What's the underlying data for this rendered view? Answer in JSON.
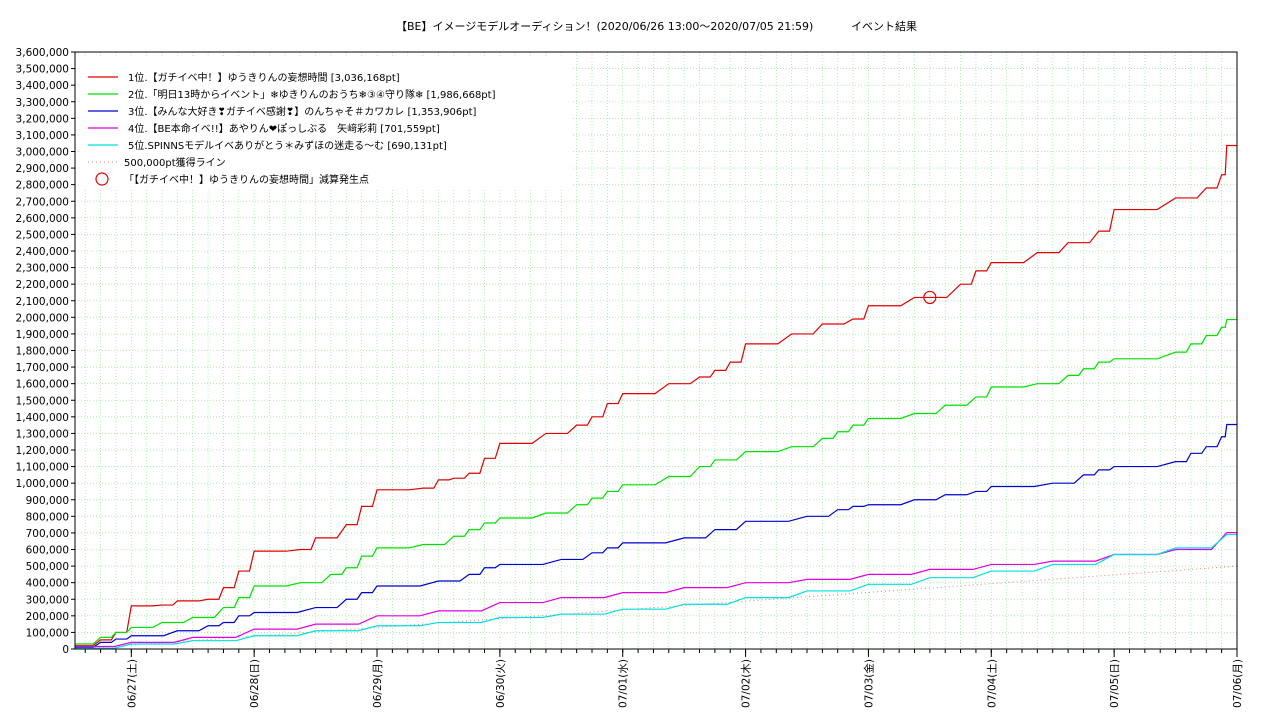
{
  "chart_data": {
    "type": "line",
    "title": "【BE】イメージモデルオーディション！(2020/06/26 13:00〜2020/07/05 21:59)",
    "subtitle": "イベント結果",
    "ylim": [
      0,
      3600000
    ],
    "y_ticks": [
      "0",
      "100,000",
      "200,000",
      "300,000",
      "400,000",
      "500,000",
      "600,000",
      "700,000",
      "800,000",
      "900,000",
      "1,000,000",
      "1,100,000",
      "1,200,000",
      "1,300,000",
      "1,400,000",
      "1,500,000",
      "1,600,000",
      "1,700,000",
      "1,800,000",
      "1,900,000",
      "2,000,000",
      "2,100,000",
      "2,200,000",
      "2,300,000",
      "2,400,000",
      "2,500,000",
      "2,600,000",
      "2,700,000",
      "2,800,000",
      "2,900,000",
      "3,000,000",
      "3,100,000",
      "3,200,000",
      "3,300,000",
      "3,400,000",
      "3,500,000",
      "3,600,000"
    ],
    "x_range": [
      "2020-06-26 13:00",
      "2020-07-06 00:00"
    ],
    "x_ticks": [
      {
        "date": "2020-06-27 00:00",
        "label": "06/27(土)"
      },
      {
        "date": "2020-06-28 00:00",
        "label": "06/28(日)"
      },
      {
        "date": "2020-06-29 00:00",
        "label": "06/29(月)"
      },
      {
        "date": "2020-06-30 00:00",
        "label": "06/30(火)"
      },
      {
        "date": "2020-07-01 00:00",
        "label": "07/01(水)"
      },
      {
        "date": "2020-07-02 00:00",
        "label": "07/02(木)"
      },
      {
        "date": "2020-07-03 00:00",
        "label": "07/03(金)"
      },
      {
        "date": "2020-07-04 00:00",
        "label": "07/04(土)"
      },
      {
        "date": "2020-07-05 00:00",
        "label": "07/05(日)"
      },
      {
        "date": "2020-07-06 00:00",
        "label": "07/06(月)"
      }
    ],
    "grid": true,
    "legend_position": "top-left",
    "series": [
      {
        "name": "1位.【ガチイベ中！】ゆうきりんの妄想時間 [3,036,168pt]",
        "color": "#e00000",
        "points": [
          [
            "2020-06-26 13:00",
            20000
          ],
          [
            "2020-06-26 18:00",
            55000
          ],
          [
            "2020-06-26 21:00",
            100000
          ],
          [
            "2020-06-27 00:00",
            260000
          ],
          [
            "2020-06-27 06:00",
            265000
          ],
          [
            "2020-06-27 09:00",
            290000
          ],
          [
            "2020-06-27 15:00",
            300000
          ],
          [
            "2020-06-27 18:00",
            370000
          ],
          [
            "2020-06-27 21:00",
            470000
          ],
          [
            "2020-06-28 00:00",
            590000
          ],
          [
            "2020-06-28 09:00",
            600000
          ],
          [
            "2020-06-28 12:00",
            670000
          ],
          [
            "2020-06-28 18:00",
            750000
          ],
          [
            "2020-06-28 21:00",
            860000
          ],
          [
            "2020-06-29 00:00",
            960000
          ],
          [
            "2020-06-29 09:00",
            970000
          ],
          [
            "2020-06-29 12:00",
            1020000
          ],
          [
            "2020-06-29 15:00",
            1030000
          ],
          [
            "2020-06-29 18:00",
            1060000
          ],
          [
            "2020-06-29 21:00",
            1150000
          ],
          [
            "2020-06-30 00:00",
            1240000
          ],
          [
            "2020-06-30 09:00",
            1300000
          ],
          [
            "2020-06-30 15:00",
            1350000
          ],
          [
            "2020-06-30 18:00",
            1400000
          ],
          [
            "2020-06-30 21:00",
            1480000
          ],
          [
            "2020-07-01 00:00",
            1540000
          ],
          [
            "2020-07-01 09:00",
            1600000
          ],
          [
            "2020-07-01 15:00",
            1640000
          ],
          [
            "2020-07-01 18:00",
            1680000
          ],
          [
            "2020-07-01 21:00",
            1730000
          ],
          [
            "2020-07-02 00:00",
            1840000
          ],
          [
            "2020-07-02 09:00",
            1900000
          ],
          [
            "2020-07-02 15:00",
            1960000
          ],
          [
            "2020-07-02 21:00",
            1990000
          ],
          [
            "2020-07-03 00:00",
            2070000
          ],
          [
            "2020-07-03 09:00",
            2120000
          ],
          [
            "2020-07-03 18:00",
            2200000
          ],
          [
            "2020-07-03 21:00",
            2280000
          ],
          [
            "2020-07-04 00:00",
            2330000
          ],
          [
            "2020-07-04 09:00",
            2390000
          ],
          [
            "2020-07-04 15:00",
            2450000
          ],
          [
            "2020-07-04 21:00",
            2520000
          ],
          [
            "2020-07-05 00:00",
            2650000
          ],
          [
            "2020-07-05 12:00",
            2720000
          ],
          [
            "2020-07-05 18:00",
            2780000
          ],
          [
            "2020-07-05 21:00",
            2860000
          ],
          [
            "2020-07-05 22:00",
            3036168
          ],
          [
            "2020-07-06 00:00",
            3036168
          ]
        ]
      },
      {
        "name": "2位.「明日13時からイベント」❄ゆきりんのおうち❄③④守り隊❄ [1,986,668pt]",
        "color": "#00e000",
        "points": [
          [
            "2020-06-26 13:00",
            30000
          ],
          [
            "2020-06-26 18:00",
            70000
          ],
          [
            "2020-06-26 21:00",
            100000
          ],
          [
            "2020-06-27 00:00",
            130000
          ],
          [
            "2020-06-27 06:00",
            160000
          ],
          [
            "2020-06-27 12:00",
            190000
          ],
          [
            "2020-06-27 18:00",
            250000
          ],
          [
            "2020-06-27 21:00",
            310000
          ],
          [
            "2020-06-28 00:00",
            380000
          ],
          [
            "2020-06-28 09:00",
            400000
          ],
          [
            "2020-06-28 15:00",
            450000
          ],
          [
            "2020-06-28 18:00",
            490000
          ],
          [
            "2020-06-28 21:00",
            560000
          ],
          [
            "2020-06-29 00:00",
            610000
          ],
          [
            "2020-06-29 09:00",
            630000
          ],
          [
            "2020-06-29 15:00",
            680000
          ],
          [
            "2020-06-29 18:00",
            720000
          ],
          [
            "2020-06-29 21:00",
            760000
          ],
          [
            "2020-06-30 00:00",
            790000
          ],
          [
            "2020-06-30 09:00",
            820000
          ],
          [
            "2020-06-30 15:00",
            870000
          ],
          [
            "2020-06-30 18:00",
            910000
          ],
          [
            "2020-06-30 21:00",
            950000
          ],
          [
            "2020-07-01 00:00",
            990000
          ],
          [
            "2020-07-01 09:00",
            1040000
          ],
          [
            "2020-07-01 15:00",
            1100000
          ],
          [
            "2020-07-01 18:00",
            1140000
          ],
          [
            "2020-07-02 00:00",
            1190000
          ],
          [
            "2020-07-02 09:00",
            1220000
          ],
          [
            "2020-07-02 15:00",
            1270000
          ],
          [
            "2020-07-02 18:00",
            1310000
          ],
          [
            "2020-07-02 21:00",
            1350000
          ],
          [
            "2020-07-03 00:00",
            1390000
          ],
          [
            "2020-07-03 09:00",
            1420000
          ],
          [
            "2020-07-03 15:00",
            1470000
          ],
          [
            "2020-07-03 21:00",
            1520000
          ],
          [
            "2020-07-04 00:00",
            1580000
          ],
          [
            "2020-07-04 09:00",
            1600000
          ],
          [
            "2020-07-04 15:00",
            1650000
          ],
          [
            "2020-07-04 18:00",
            1690000
          ],
          [
            "2020-07-04 21:00",
            1730000
          ],
          [
            "2020-07-05 00:00",
            1750000
          ],
          [
            "2020-07-05 12:00",
            1790000
          ],
          [
            "2020-07-05 15:00",
            1840000
          ],
          [
            "2020-07-05 18:00",
            1890000
          ],
          [
            "2020-07-05 21:00",
            1940000
          ],
          [
            "2020-07-05 22:00",
            1986668
          ],
          [
            "2020-07-06 00:00",
            1986668
          ]
        ]
      },
      {
        "name": "3位.【みんな大好き❣ガチイベ感謝❣】のんちゃそ＃カワカレ [1,353,906pt]",
        "color": "#0000d0",
        "points": [
          [
            "2020-06-26 13:00",
            10000
          ],
          [
            "2020-06-26 18:00",
            40000
          ],
          [
            "2020-06-26 21:00",
            60000
          ],
          [
            "2020-06-27 00:00",
            80000
          ],
          [
            "2020-06-27 09:00",
            110000
          ],
          [
            "2020-06-27 15:00",
            140000
          ],
          [
            "2020-06-27 18:00",
            160000
          ],
          [
            "2020-06-27 21:00",
            200000
          ],
          [
            "2020-06-28 00:00",
            220000
          ],
          [
            "2020-06-28 12:00",
            250000
          ],
          [
            "2020-06-28 18:00",
            300000
          ],
          [
            "2020-06-28 21:00",
            340000
          ],
          [
            "2020-06-29 00:00",
            380000
          ],
          [
            "2020-06-29 12:00",
            410000
          ],
          [
            "2020-06-29 18:00",
            450000
          ],
          [
            "2020-06-29 21:00",
            490000
          ],
          [
            "2020-06-30 00:00",
            510000
          ],
          [
            "2020-06-30 12:00",
            540000
          ],
          [
            "2020-06-30 18:00",
            580000
          ],
          [
            "2020-06-30 21:00",
            610000
          ],
          [
            "2020-07-01 00:00",
            640000
          ],
          [
            "2020-07-01 12:00",
            670000
          ],
          [
            "2020-07-01 18:00",
            720000
          ],
          [
            "2020-07-02 00:00",
            770000
          ],
          [
            "2020-07-02 12:00",
            800000
          ],
          [
            "2020-07-02 18:00",
            840000
          ],
          [
            "2020-07-02 21:00",
            860000
          ],
          [
            "2020-07-03 00:00",
            870000
          ],
          [
            "2020-07-03 09:00",
            900000
          ],
          [
            "2020-07-03 15:00",
            930000
          ],
          [
            "2020-07-03 21:00",
            950000
          ],
          [
            "2020-07-04 00:00",
            980000
          ],
          [
            "2020-07-04 12:00",
            1000000
          ],
          [
            "2020-07-04 18:00",
            1050000
          ],
          [
            "2020-07-04 21:00",
            1080000
          ],
          [
            "2020-07-05 00:00",
            1100000
          ],
          [
            "2020-07-05 12:00",
            1130000
          ],
          [
            "2020-07-05 15:00",
            1180000
          ],
          [
            "2020-07-05 18:00",
            1220000
          ],
          [
            "2020-07-05 21:00",
            1280000
          ],
          [
            "2020-07-05 22:00",
            1353906
          ],
          [
            "2020-07-06 00:00",
            1353906
          ]
        ]
      },
      {
        "name": "4位.【BE本命イベ!!】あやりん❤ぽっしぶる　矢﨑彩莉 [701,559pt]",
        "color": "#e000e0",
        "points": [
          [
            "2020-06-26 13:00",
            15000
          ],
          [
            "2020-06-27 00:00",
            40000
          ],
          [
            "2020-06-27 12:00",
            70000
          ],
          [
            "2020-06-28 00:00",
            120000
          ],
          [
            "2020-06-28 12:00",
            150000
          ],
          [
            "2020-06-29 00:00",
            200000
          ],
          [
            "2020-06-29 12:00",
            230000
          ],
          [
            "2020-06-30 00:00",
            280000
          ],
          [
            "2020-06-30 12:00",
            310000
          ],
          [
            "2020-07-01 00:00",
            340000
          ],
          [
            "2020-07-01 12:00",
            370000
          ],
          [
            "2020-07-02 00:00",
            400000
          ],
          [
            "2020-07-02 12:00",
            420000
          ],
          [
            "2020-07-03 00:00",
            450000
          ],
          [
            "2020-07-03 12:00",
            480000
          ],
          [
            "2020-07-04 00:00",
            510000
          ],
          [
            "2020-07-04 12:00",
            530000
          ],
          [
            "2020-07-05 00:00",
            570000
          ],
          [
            "2020-07-05 12:00",
            600000
          ],
          [
            "2020-07-05 22:00",
            701559
          ],
          [
            "2020-07-06 00:00",
            701559
          ]
        ]
      },
      {
        "name": "5位.SPINNSモデルイベありがとう＊みずほの迷走る〜む [690,131pt]",
        "color": "#00e0e0",
        "points": [
          [
            "2020-06-26 13:00",
            5000
          ],
          [
            "2020-06-27 00:00",
            30000
          ],
          [
            "2020-06-27 12:00",
            50000
          ],
          [
            "2020-06-28 00:00",
            80000
          ],
          [
            "2020-06-28 12:00",
            110000
          ],
          [
            "2020-06-29 00:00",
            140000
          ],
          [
            "2020-06-29 12:00",
            160000
          ],
          [
            "2020-06-30 00:00",
            190000
          ],
          [
            "2020-06-30 12:00",
            210000
          ],
          [
            "2020-07-01 00:00",
            240000
          ],
          [
            "2020-07-01 12:00",
            270000
          ],
          [
            "2020-07-02 00:00",
            310000
          ],
          [
            "2020-07-02 12:00",
            350000
          ],
          [
            "2020-07-03 00:00",
            390000
          ],
          [
            "2020-07-03 12:00",
            430000
          ],
          [
            "2020-07-04 00:00",
            470000
          ],
          [
            "2020-07-04 12:00",
            510000
          ],
          [
            "2020-07-05 00:00",
            570000
          ],
          [
            "2020-07-05 12:00",
            610000
          ],
          [
            "2020-07-05 22:00",
            690131
          ],
          [
            "2020-07-06 00:00",
            690131
          ]
        ]
      },
      {
        "name": "500,000pt獲得ライン",
        "color": "#e08080",
        "dotted": true,
        "points": [
          [
            "2020-06-26 13:00",
            0
          ],
          [
            "2020-07-06 00:00",
            500000
          ]
        ]
      }
    ],
    "marker": {
      "name": "「【ガチイベ中！】ゆうきりんの妄想時間」減算発生点",
      "color": "#e00000",
      "point": [
        "2020-07-03 12:00",
        2120000
      ]
    }
  }
}
